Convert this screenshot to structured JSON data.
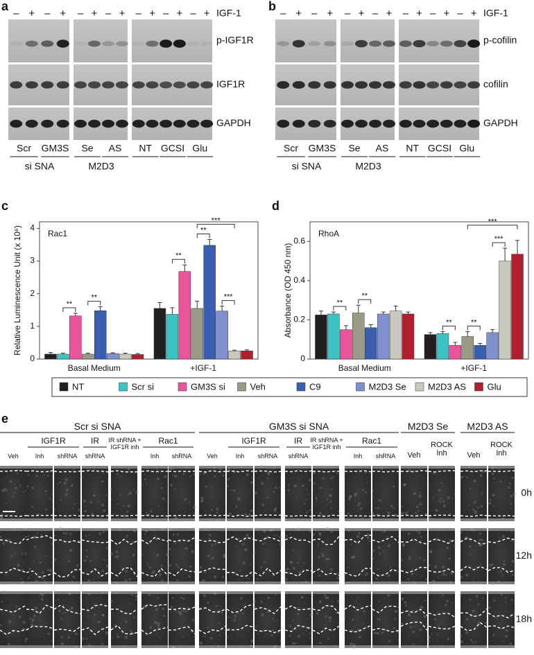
{
  "blots": [
    {
      "panel_label": "a",
      "treatment": "IGF-1",
      "signs": [
        "–",
        "+",
        "–",
        "+",
        "–",
        "+",
        "–",
        "+",
        "–",
        "+",
        "–",
        "+",
        "–",
        "+"
      ],
      "bands": [
        "p-IGF1R",
        "IGF1R",
        "GAPDH"
      ],
      "lanes": [
        "Scr",
        "GM3S",
        "Se",
        "AS",
        "NT",
        "GCSI",
        "Glu"
      ],
      "groups": [
        "si SNA",
        "M2D3"
      ]
    },
    {
      "panel_label": "b",
      "treatment": "IGF-1",
      "signs": [
        "–",
        "+",
        "–",
        "+",
        "–",
        "+",
        "–",
        "+",
        "–",
        "+",
        "–",
        "+",
        "–",
        "+"
      ],
      "bands": [
        "p-cofilin",
        "cofilin",
        "GAPDH"
      ],
      "lanes": [
        "Scr",
        "GM3S",
        "Se",
        "AS",
        "NT",
        "GCSI",
        "Glu"
      ],
      "groups": [
        "si SNA",
        "M2D3"
      ]
    }
  ],
  "chart_data": [
    {
      "type": "bar",
      "panel_label": "c",
      "title": "Rac1",
      "y_label": "Relative Luminescence Unit (x 10⁶)",
      "categories": [
        "Basal Medium",
        "+IGF-1"
      ],
      "series": [
        {
          "name": "NT",
          "color": "#231f20",
          "values": [
            0.15,
            1.55
          ],
          "errors": [
            0.05,
            0.18
          ]
        },
        {
          "name": "Scr si",
          "color": "#3cc3c3",
          "values": [
            0.15,
            1.37
          ],
          "errors": [
            0.03,
            0.2
          ]
        },
        {
          "name": "GM3S si",
          "color": "#e8559b",
          "values": [
            1.32,
            2.68
          ],
          "errors": [
            0.08,
            0.2
          ]
        },
        {
          "name": "Veh",
          "color": "#9a9a86",
          "values": [
            0.15,
            1.55
          ],
          "errors": [
            0.03,
            0.22
          ]
        },
        {
          "name": "C9",
          "color": "#3a5eb0",
          "values": [
            1.48,
            3.48
          ],
          "errors": [
            0.12,
            0.18
          ]
        },
        {
          "name": "M2D3 Se",
          "color": "#8090cf",
          "values": [
            0.17,
            1.47
          ],
          "errors": [
            0.02,
            0.15
          ]
        },
        {
          "name": "M2D3 AS",
          "color": "#c9c9bd",
          "values": [
            0.15,
            0.25
          ],
          "errors": [
            0.03,
            0.02
          ]
        },
        {
          "name": "Glu",
          "color": "#b11f2f",
          "values": [
            0.14,
            0.25
          ],
          "errors": [
            0.03,
            0.03
          ]
        }
      ],
      "ylim": [
        0,
        4.2
      ],
      "yticks": [
        0,
        1,
        2,
        3,
        4
      ],
      "significance": [
        "**",
        "**",
        "**",
        "**",
        "***",
        "***"
      ]
    },
    {
      "type": "bar",
      "panel_label": "d",
      "title": "RhoA",
      "y_label": "Absorbance (OD 450 nm)",
      "categories": [
        "Basal Medium",
        "+IGF-1"
      ],
      "series": [
        {
          "name": "NT",
          "color": "#231f20",
          "values": [
            0.225,
            0.125
          ],
          "errors": [
            0.02,
            0.01
          ]
        },
        {
          "name": "Scr si",
          "color": "#3cc3c3",
          "values": [
            0.23,
            0.13
          ],
          "errors": [
            0.01,
            0.01
          ]
        },
        {
          "name": "GM3S si",
          "color": "#e8559b",
          "values": [
            0.15,
            0.07
          ],
          "errors": [
            0.02,
            0.015
          ]
        },
        {
          "name": "Veh",
          "color": "#9a9a86",
          "values": [
            0.235,
            0.115
          ],
          "errors": [
            0.04,
            0.025
          ]
        },
        {
          "name": "C9",
          "color": "#3a5eb0",
          "values": [
            0.16,
            0.07
          ],
          "errors": [
            0.015,
            0.01
          ]
        },
        {
          "name": "M2D3 Se",
          "color": "#8090cf",
          "values": [
            0.23,
            0.135
          ],
          "errors": [
            0.01,
            0.015
          ]
        },
        {
          "name": "M2D3 AS",
          "color": "#c9c9bd",
          "values": [
            0.245,
            0.5
          ],
          "errors": [
            0.025,
            0.065
          ]
        },
        {
          "name": "Glu",
          "color": "#b11f2f",
          "values": [
            0.23,
            0.535
          ],
          "errors": [
            0.01,
            0.07
          ]
        }
      ],
      "ylim": [
        0,
        0.7
      ],
      "yticks": [
        0,
        0.2,
        0.4,
        0.6
      ],
      "significance": [
        "**",
        "**",
        "**",
        "**",
        "***",
        "***"
      ]
    }
  ],
  "panel_e": {
    "panel_label": "e",
    "groups": [
      {
        "title": "Scr si SNA",
        "subgroups": [
          "IGF1R",
          "IR",
          "Rac1"
        ],
        "columns": [
          "Veh",
          "Inh",
          "shRNA",
          "shRNA",
          "IR shRNA + IGF1R inh",
          "Inh",
          "shRNA"
        ]
      },
      {
        "title": "GM3S si SNA",
        "subgroups": [
          "IGF1R",
          "IR",
          "Rac1"
        ],
        "columns": [
          "Veh",
          "Inh",
          "shRNA",
          "shRNA",
          "IR shRNA + IGF1R inh",
          "Inh",
          "shRNA"
        ]
      },
      {
        "title": "M2D3 Se",
        "subgroups": [],
        "columns": [
          "Veh",
          "ROCK Inh"
        ]
      },
      {
        "title": "M2D3 AS",
        "subgroups": [],
        "columns": [
          "Veh",
          "ROCK Inh"
        ]
      }
    ],
    "time_points": [
      "0h",
      "12h",
      "18h"
    ]
  }
}
